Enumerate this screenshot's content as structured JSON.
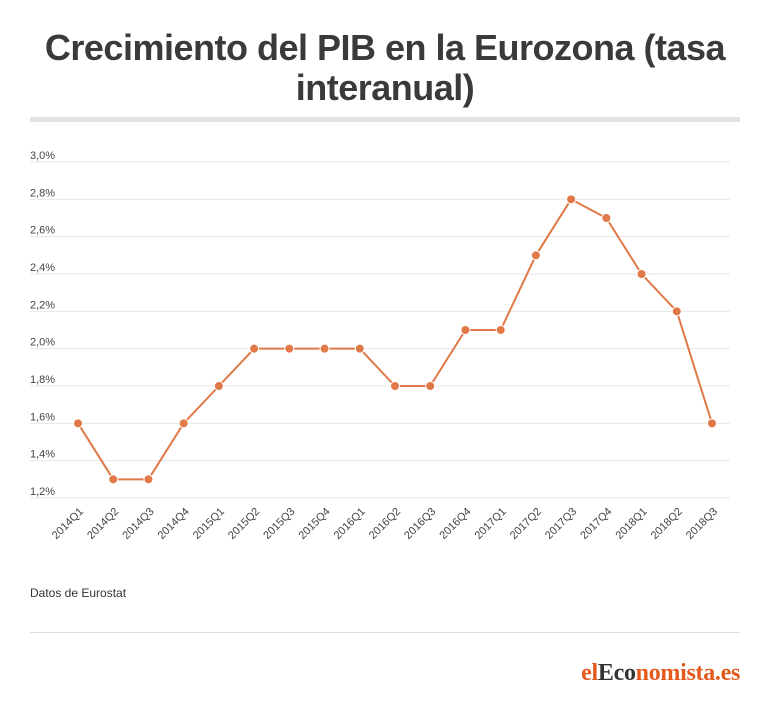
{
  "chart_data": {
    "type": "line",
    "title": "Crecimiento del PIB en la Eurozona (tasa interanual)",
    "xlabel": "",
    "ylabel": "",
    "categories": [
      "2014Q1",
      "2014Q2",
      "2014Q3",
      "2014Q4",
      "2015Q1",
      "2015Q2",
      "2015Q3",
      "2015Q4",
      "2016Q1",
      "2016Q2",
      "2016Q3",
      "2016Q4",
      "2017Q1",
      "2017Q2",
      "2017Q3",
      "2017Q4",
      "2018Q1",
      "2018Q2",
      "2018Q3"
    ],
    "series": [
      {
        "values": [
          1.6,
          1.3,
          1.3,
          1.6,
          1.8,
          2.0,
          2.0,
          2.0,
          2.0,
          1.8,
          1.8,
          2.1,
          2.1,
          2.5,
          2.8,
          2.7,
          2.4,
          2.2,
          1.6
        ]
      }
    ],
    "ylim": [
      1.2,
      3.0
    ],
    "yticks": [
      "1,2%",
      "1,4%",
      "1,6%",
      "1,8%",
      "2,0%",
      "2,2%",
      "2,4%",
      "2,6%",
      "2,8%",
      "3,0%"
    ],
    "grid": true,
    "line_color": "#e07848"
  },
  "source": "Datos de Eurostat",
  "logo": {
    "part1": "el",
    "part2": "Eco",
    "part3": "nomista.es"
  }
}
